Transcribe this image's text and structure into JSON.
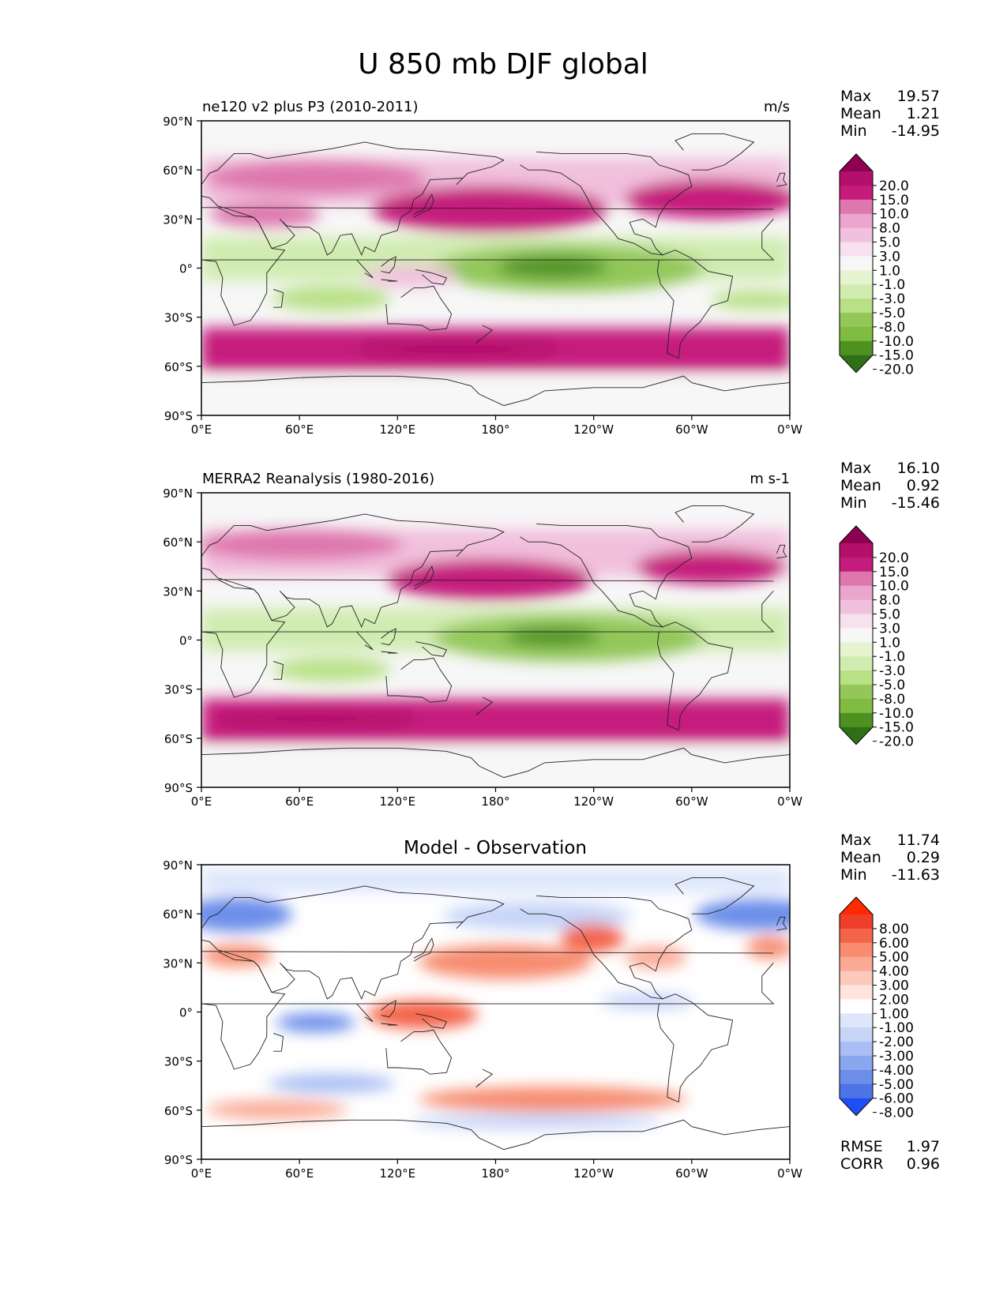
{
  "figure_title": "U 850 mb DJF global",
  "chart_data": [
    {
      "type": "heatmap",
      "title": "ne120 v2 plus P3 (2010-2011)",
      "units": "m/s",
      "stats": [
        {
          "label": "Max",
          "value": "19.57"
        },
        {
          "label": "Mean",
          "value": "1.21"
        },
        {
          "label": "Min",
          "value": "-14.95"
        }
      ],
      "colorbar": {
        "labels": [
          "20.0",
          "15.0",
          "10.0",
          "8.0",
          "5.0",
          "3.0",
          "1.0",
          "-1.0",
          "-3.0",
          "-5.0",
          "-8.0",
          "-10.0",
          "-15.0",
          "-20.0"
        ],
        "colors": [
          "#8e0152",
          "#b3106b",
          "#c51b7d",
          "#de77ae",
          "#eaa6cc",
          "#f1c0dd",
          "#f7e1ef",
          "#f7f7f7",
          "#e6f5d0",
          "#d0ecb0",
          "#b8e186",
          "#93c75a",
          "#7fbc41",
          "#4d9221",
          "#2f6f16"
        ]
      }
    },
    {
      "type": "heatmap",
      "title": "MERRA2 Reanalysis (1980-2016)",
      "units": "m s-1",
      "stats": [
        {
          "label": "Max",
          "value": "16.10"
        },
        {
          "label": "Mean",
          "value": "0.92"
        },
        {
          "label": "Min",
          "value": "-15.46"
        }
      ],
      "colorbar": {
        "labels": [
          "20.0",
          "15.0",
          "10.0",
          "8.0",
          "5.0",
          "3.0",
          "1.0",
          "-1.0",
          "-3.0",
          "-5.0",
          "-8.0",
          "-10.0",
          "-15.0",
          "-20.0"
        ],
        "colors": [
          "#8e0152",
          "#b3106b",
          "#c51b7d",
          "#de77ae",
          "#eaa6cc",
          "#f1c0dd",
          "#f7e1ef",
          "#f7f7f7",
          "#e6f5d0",
          "#d0ecb0",
          "#b8e186",
          "#93c75a",
          "#7fbc41",
          "#4d9221",
          "#2f6f16"
        ]
      }
    },
    {
      "type": "heatmap",
      "title": "Model - Observation",
      "units": "",
      "stats": [
        {
          "label": "Max",
          "value": "11.74"
        },
        {
          "label": "Mean",
          "value": "0.29"
        },
        {
          "label": "Min",
          "value": "-11.63"
        }
      ],
      "metrics": [
        {
          "label": "RMSE",
          "value": "1.97"
        },
        {
          "label": "CORR",
          "value": "0.96"
        }
      ],
      "colorbar": {
        "labels": [
          "8.00",
          "6.00",
          "5.00",
          "4.00",
          "3.00",
          "2.00",
          "1.00",
          "-1.00",
          "-2.00",
          "-3.00",
          "-4.00",
          "-5.00",
          "-6.00",
          "-8.00"
        ],
        "colors": [
          "#ff2a00",
          "#ee3f2a",
          "#f4644a",
          "#f78c6f",
          "#faa994",
          "#fcc8b9",
          "#fee4dc",
          "#ffffff",
          "#dde6fb",
          "#c6d4f7",
          "#a9bef4",
          "#8aa6ee",
          "#6c8eea",
          "#4d74e6",
          "#1f4ff2"
        ]
      }
    }
  ],
  "axes": {
    "yticks": [
      "90°N",
      "60°N",
      "30°N",
      "0°",
      "30°S",
      "60°S",
      "90°S"
    ],
    "xticks": [
      "0°E",
      "60°E",
      "120°E",
      "180°",
      "120°W",
      "60°W",
      "0°W"
    ]
  }
}
